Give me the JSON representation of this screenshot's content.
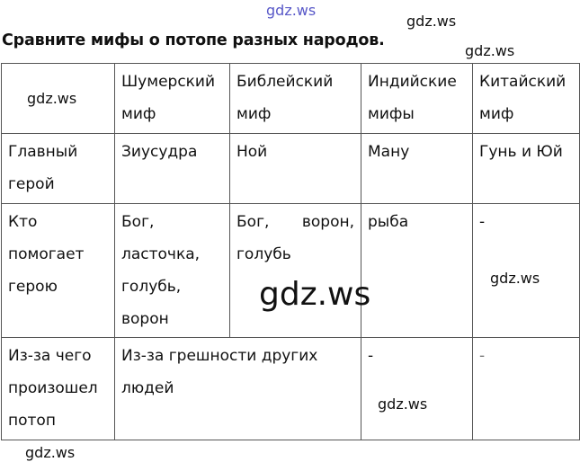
{
  "title": "Сравните мифы о потопе разных народов.",
  "table": {
    "headers": [
      "",
      "Шумерский миф",
      "Библейский миф",
      "Индийские мифы",
      "Китайский миф"
    ],
    "rows": [
      {
        "label": "Главный герой",
        "cells": [
          "Зиусудра",
          "Ной",
          "Ману",
          "Гунь и Юй"
        ]
      },
      {
        "label": "Кто помогает герою",
        "cells": [
          "Бог, ласточка, голубь, ворон",
          "Бог, ворон, голубь",
          "рыба",
          "-"
        ]
      },
      {
        "label": "Из-за чего произошел потоп",
        "merged": "Из-за грешности других людей",
        "cells": [
          "-",
          "-"
        ]
      }
    ]
  },
  "watermarks": [
    "gdz.ws",
    "gdz.ws",
    "gdz.ws",
    "gdz.ws",
    "gdz.ws",
    "gdz.ws",
    "gdz.ws",
    "gdz.ws"
  ]
}
